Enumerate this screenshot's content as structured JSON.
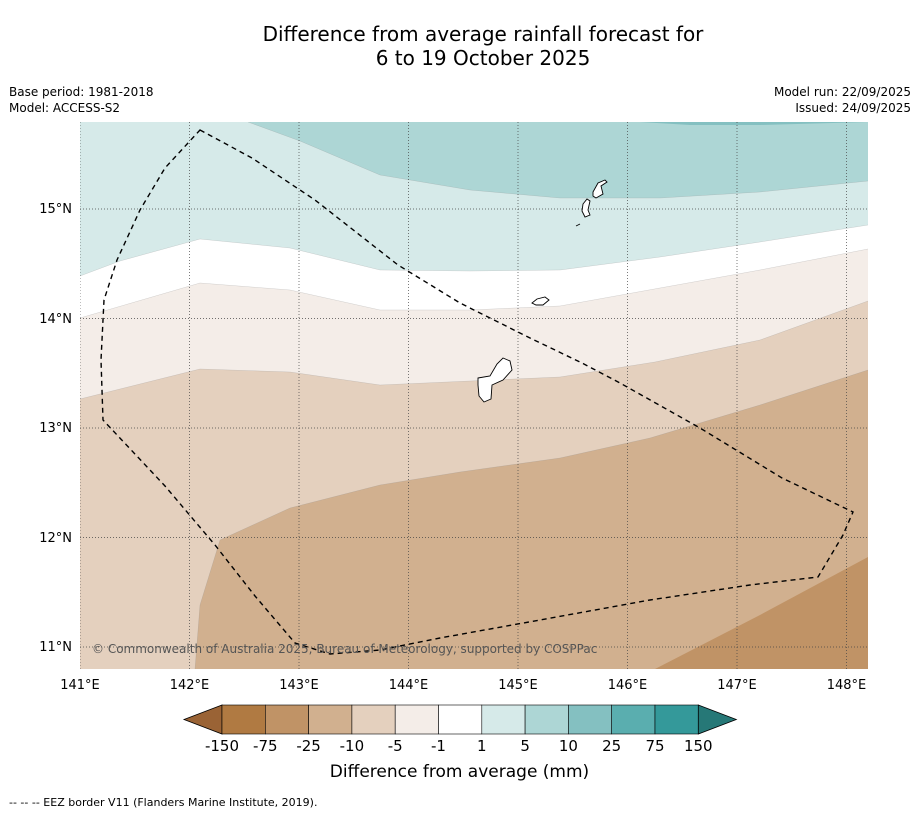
{
  "title": {
    "line1": "Difference from average rainfall forecast for",
    "line2": "6 to 19 October 2025"
  },
  "meta_left": {
    "base_period": "Base period: 1981-2018",
    "model": "Model: ACCESS-S2"
  },
  "meta_right": {
    "model_run": "Model run: 22/09/2025",
    "issued": "Issued: 24/09/2025"
  },
  "map": {
    "lon_range": [
      141,
      148.2
    ],
    "lat_range": [
      10.8,
      15.8
    ],
    "lon_ticks": [
      "141°E",
      "142°E",
      "143°E",
      "144°E",
      "145°E",
      "146°E",
      "147°E",
      "148°E"
    ],
    "lat_ticks": [
      "15°N",
      "14°N",
      "13°N",
      "12°N",
      "11°N"
    ],
    "copyright": "© Commonwealth of Australia 2025, Bureau of Meteorology, supported by COSPPac"
  },
  "colorbar": {
    "labels": [
      "-150",
      "-75",
      "-25",
      "-10",
      "-5",
      "-1",
      "1",
      "5",
      "10",
      "25",
      "75",
      "150"
    ],
    "colors": [
      "#9a6335",
      "#b07a42",
      "#c09366",
      "#d1b08f",
      "#e4d0be",
      "#f4ede8",
      "#ffffff",
      "#d6eae9",
      "#add6d5",
      "#84c0c1",
      "#5aaeaf",
      "#34999a",
      "#267877"
    ],
    "title": "Difference from average (mm)"
  },
  "footnote": "--  --  -- EEZ border V11 (Flanders Marine Institute, 2019)."
}
